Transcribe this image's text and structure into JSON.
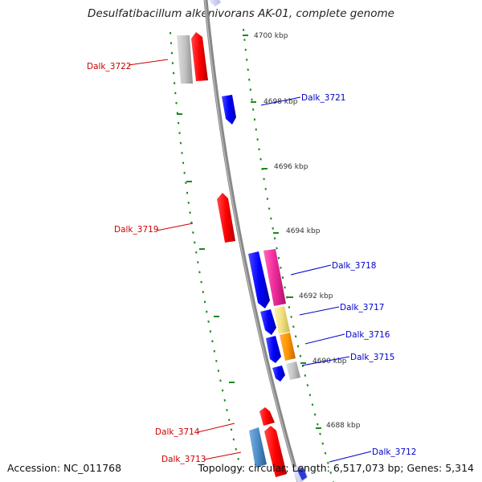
{
  "title": "Desulfatibacillum alkenivorans AK-01, complete genome",
  "accession_text": "Accession: NC_011768",
  "topology_text": "Topology: circular; Length: 6,517,073 bp; Genes: 5,314",
  "colors": {
    "forward_label": "#cc0000",
    "reverse_label": "#0000cc",
    "backbone": "#888888",
    "dotted_ring": "#1a8a1a",
    "tick_label": "#333333"
  },
  "ticks": [
    "4700 kbp",
    "4698 kbp",
    "4696 kbp",
    "4694 kbp",
    "4692 kbp",
    "4690 kbp",
    "4688 kbp"
  ],
  "genes": [
    {
      "name": "Dalk_3722",
      "strand": "forward",
      "color": "#cc0000"
    },
    {
      "name": "Dalk_3721",
      "strand": "reverse",
      "color": "#0000cc"
    },
    {
      "name": "Dalk_3719",
      "strand": "forward",
      "color": "#cc0000"
    },
    {
      "name": "Dalk_3718",
      "strand": "reverse",
      "color": "#0000cc"
    },
    {
      "name": "Dalk_3717",
      "strand": "reverse",
      "color": "#0000cc"
    },
    {
      "name": "Dalk_3716",
      "strand": "reverse",
      "color": "#0000cc"
    },
    {
      "name": "Dalk_3715",
      "strand": "reverse",
      "color": "#0000cc"
    },
    {
      "name": "Dalk_3714",
      "strand": "forward",
      "color": "#cc0000"
    },
    {
      "name": "Dalk_3713",
      "strand": "forward",
      "color": "#cc0000"
    },
    {
      "name": "Dalk_3712",
      "strand": "reverse",
      "color": "#0000cc"
    }
  ]
}
